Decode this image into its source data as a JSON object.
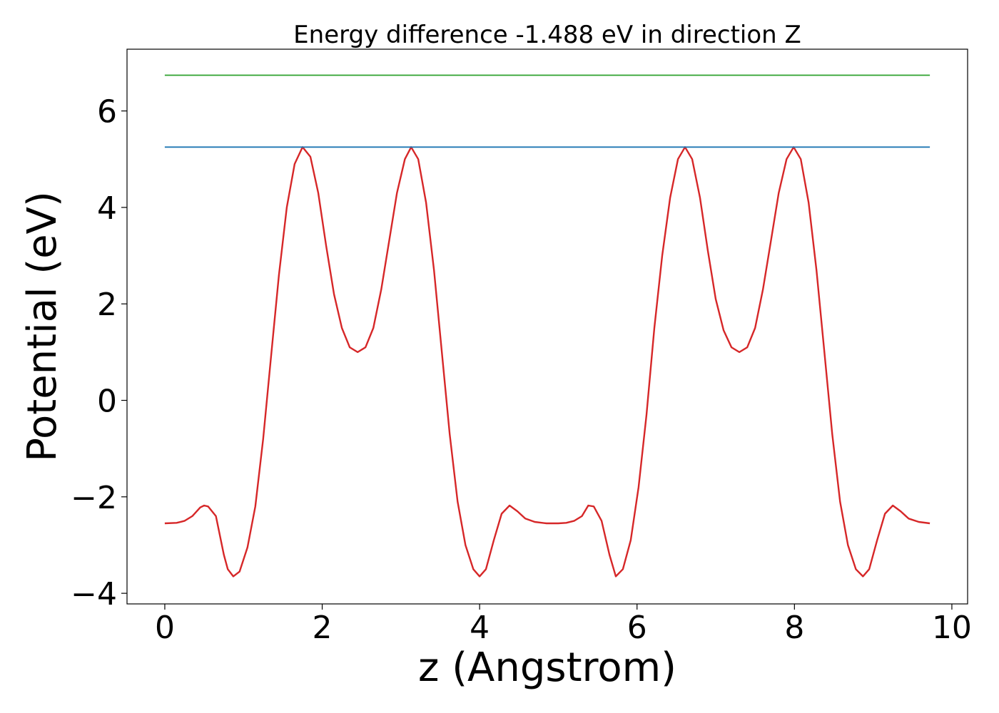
{
  "chart_data": {
    "type": "line",
    "title": "Energy difference -1.488 eV in direction Z",
    "xlabel": "z (Angstrom)",
    "ylabel": "Potential (eV)",
    "xlim": [
      -0.48,
      10.2
    ],
    "ylim": [
      -4.22,
      7.28
    ],
    "xticks": [
      0,
      2,
      4,
      6,
      8,
      10
    ],
    "xtick_labels": [
      "0",
      "2",
      "4",
      "6",
      "8",
      "10"
    ],
    "yticks": [
      -4,
      -2,
      0,
      2,
      4,
      6
    ],
    "ytick_labels": [
      "−4",
      "−2",
      "0",
      "2",
      "4",
      "6"
    ],
    "grid": false,
    "series": [
      {
        "color": "#d62728",
        "points": [
          [
            0,
            -2.55
          ],
          [
            0.15,
            -2.54
          ],
          [
            0.25,
            -2.5
          ],
          [
            0.35,
            -2.4
          ],
          [
            0.45,
            -2.22
          ],
          [
            0.5,
            -2.18
          ],
          [
            0.55,
            -2.2
          ],
          [
            0.65,
            -2.4
          ],
          [
            0.75,
            -3.2
          ],
          [
            0.8,
            -3.5
          ],
          [
            0.87,
            -3.65
          ],
          [
            0.95,
            -3.55
          ],
          [
            1.05,
            -3.05
          ],
          [
            1.15,
            -2.2
          ],
          [
            1.25,
            -0.8
          ],
          [
            1.35,
            0.9
          ],
          [
            1.45,
            2.6
          ],
          [
            1.55,
            4.0
          ],
          [
            1.65,
            4.9
          ],
          [
            1.75,
            5.25
          ],
          [
            1.85,
            5.05
          ],
          [
            1.95,
            4.3
          ],
          [
            2.05,
            3.2
          ],
          [
            2.15,
            2.2
          ],
          [
            2.25,
            1.5
          ],
          [
            2.35,
            1.1
          ],
          [
            2.45,
            1.0
          ],
          [
            2.55,
            1.1
          ],
          [
            2.65,
            1.5
          ],
          [
            2.75,
            2.3
          ],
          [
            2.85,
            3.3
          ],
          [
            2.95,
            4.3
          ],
          [
            3.05,
            5.0
          ],
          [
            3.13,
            5.25
          ],
          [
            3.22,
            5.0
          ],
          [
            3.32,
            4.1
          ],
          [
            3.42,
            2.7
          ],
          [
            3.52,
            1.0
          ],
          [
            3.62,
            -0.7
          ],
          [
            3.72,
            -2.1
          ],
          [
            3.82,
            -3.0
          ],
          [
            3.92,
            -3.5
          ],
          [
            4.0,
            -3.65
          ],
          [
            4.08,
            -3.5
          ],
          [
            4.18,
            -2.9
          ],
          [
            4.28,
            -2.35
          ],
          [
            4.38,
            -2.18
          ],
          [
            4.48,
            -2.3
          ],
          [
            4.58,
            -2.45
          ],
          [
            4.7,
            -2.52
          ],
          [
            4.85,
            -2.55
          ],
          [
            5.0,
            -2.55
          ],
          [
            5.1,
            -2.54
          ],
          [
            5.2,
            -2.5
          ],
          [
            5.3,
            -2.4
          ],
          [
            5.38,
            -2.18
          ],
          [
            5.45,
            -2.2
          ],
          [
            5.55,
            -2.5
          ],
          [
            5.65,
            -3.2
          ],
          [
            5.73,
            -3.65
          ],
          [
            5.82,
            -3.5
          ],
          [
            5.92,
            -2.9
          ],
          [
            6.02,
            -1.8
          ],
          [
            6.12,
            -0.3
          ],
          [
            6.22,
            1.5
          ],
          [
            6.32,
            3.0
          ],
          [
            6.42,
            4.2
          ],
          [
            6.52,
            5.0
          ],
          [
            6.61,
            5.25
          ],
          [
            6.7,
            5.0
          ],
          [
            6.8,
            4.2
          ],
          [
            6.9,
            3.1
          ],
          [
            7.0,
            2.1
          ],
          [
            7.1,
            1.45
          ],
          [
            7.2,
            1.1
          ],
          [
            7.3,
            1.0
          ],
          [
            7.4,
            1.1
          ],
          [
            7.5,
            1.5
          ],
          [
            7.6,
            2.3
          ],
          [
            7.7,
            3.3
          ],
          [
            7.8,
            4.3
          ],
          [
            7.9,
            5.0
          ],
          [
            7.99,
            5.25
          ],
          [
            8.08,
            5.0
          ],
          [
            8.18,
            4.1
          ],
          [
            8.28,
            2.7
          ],
          [
            8.38,
            1.0
          ],
          [
            8.48,
            -0.7
          ],
          [
            8.58,
            -2.1
          ],
          [
            8.68,
            -3.0
          ],
          [
            8.78,
            -3.5
          ],
          [
            8.87,
            -3.65
          ],
          [
            8.95,
            -3.5
          ],
          [
            9.05,
            -2.9
          ],
          [
            9.15,
            -2.35
          ],
          [
            9.25,
            -2.18
          ],
          [
            9.35,
            -2.3
          ],
          [
            9.45,
            -2.45
          ],
          [
            9.58,
            -2.52
          ],
          [
            9.72,
            -2.55
          ]
        ]
      },
      {
        "color": "#1f77b4",
        "points": [
          [
            0,
            5.25
          ],
          [
            9.72,
            5.25
          ]
        ]
      },
      {
        "color": "#2ca02c",
        "points": [
          [
            0,
            6.74
          ],
          [
            9.72,
            6.74
          ]
        ]
      }
    ]
  }
}
